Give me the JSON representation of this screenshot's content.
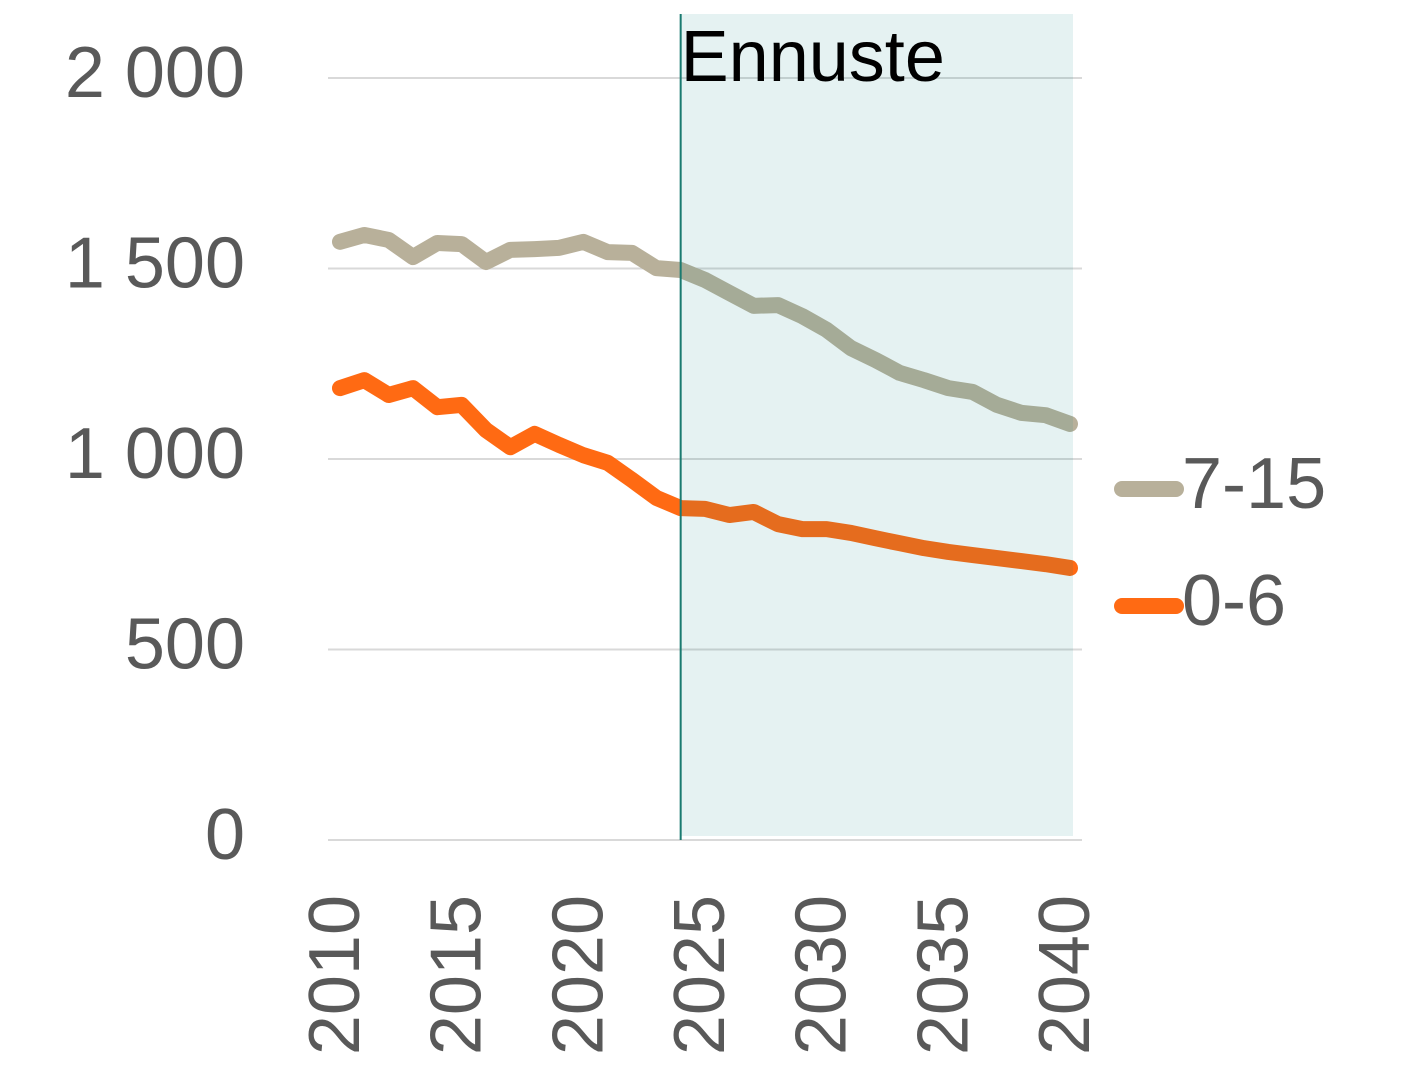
{
  "chart_data": {
    "type": "line",
    "annotation": "Ennuste",
    "forecast_start": 2024,
    "x": [
      2010,
      2011,
      2012,
      2013,
      2014,
      2015,
      2016,
      2017,
      2018,
      2019,
      2020,
      2021,
      2022,
      2023,
      2024,
      2025,
      2026,
      2027,
      2028,
      2029,
      2030,
      2031,
      2032,
      2033,
      2034,
      2035,
      2036,
      2037,
      2038,
      2039,
      2040
    ],
    "series": [
      {
        "name": "7-15",
        "color": "#b8b09a",
        "values": [
          1570,
          1588,
          1575,
          1530,
          1567,
          1564,
          1517,
          1549,
          1551,
          1554,
          1570,
          1543,
          1541,
          1501,
          1496,
          1470,
          1436,
          1402,
          1404,
          1375,
          1339,
          1291,
          1260,
          1226,
          1207,
          1186,
          1176,
          1142,
          1121,
          1115,
          1092
        ]
      },
      {
        "name": "0-6",
        "color": "#ff6a13",
        "values": [
          1186,
          1207,
          1168,
          1186,
          1136,
          1142,
          1076,
          1031,
          1066,
          1037,
          1010,
          990,
          945,
          898,
          871,
          869,
          853,
          861,
          829,
          816,
          816,
          806,
          792,
          779,
          766,
          756,
          748,
          740,
          732,
          724,
          714
        ]
      }
    ],
    "xlim": [
      2010,
      2040
    ],
    "xticks": [
      2010,
      2015,
      2020,
      2025,
      2030,
      2035,
      2040
    ],
    "ylim": [
      0,
      2000
    ],
    "yticks": [
      0,
      500,
      {
        "value": 1000,
        "label": "1 000"
      },
      {
        "value": 1500,
        "label": "1 500"
      },
      {
        "value": 2000,
        "label": "2 000"
      }
    ],
    "grid": true,
    "legend": "right"
  }
}
